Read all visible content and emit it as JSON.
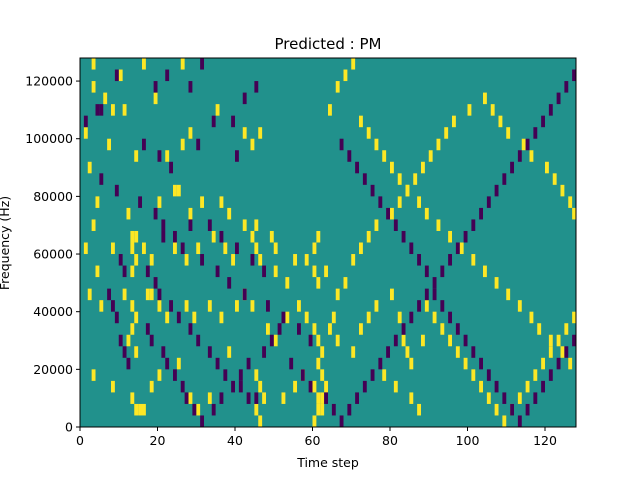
{
  "chart_data": {
    "type": "heatmap",
    "title": "Predicted : PM",
    "xlabel": "Time step",
    "ylabel": "Frequency (Hz)",
    "xlim": [
      0,
      128
    ],
    "ylim": [
      0,
      128000
    ],
    "x_ticks": [
      0,
      20,
      40,
      60,
      80,
      100,
      120
    ],
    "y_ticks": [
      0,
      20000,
      40000,
      60000,
      80000,
      100000,
      120000
    ],
    "x_tick_labels": [
      "0",
      "20",
      "40",
      "60",
      "80",
      "100",
      "120"
    ],
    "y_tick_labels": [
      "0",
      "20000",
      "40000",
      "60000",
      "80000",
      "100000",
      "120000"
    ],
    "background_value": 0,
    "colors": {
      "low": "#440154",
      "mid": "#21918c",
      "high": "#fde725"
    },
    "cell_height_hz": 4000,
    "cells_high": [
      [
        3,
        126000
      ],
      [
        10,
        122000
      ],
      [
        16,
        126000
      ],
      [
        26,
        126000
      ],
      [
        3,
        118000
      ],
      [
        6,
        114000
      ],
      [
        19,
        114000
      ],
      [
        8,
        110000
      ],
      [
        2,
        90000
      ],
      [
        7,
        98000
      ],
      [
        26,
        98000
      ],
      [
        35,
        110000
      ],
      [
        1,
        102000
      ],
      [
        11,
        110000
      ],
      [
        14,
        94000
      ],
      [
        22,
        94000
      ],
      [
        28,
        102000
      ],
      [
        42,
        102000
      ],
      [
        46,
        102000
      ],
      [
        44,
        98000
      ],
      [
        4,
        78000
      ],
      [
        12,
        74000
      ],
      [
        24,
        82000
      ],
      [
        25,
        82000
      ],
      [
        20,
        78000
      ],
      [
        28,
        74000
      ],
      [
        31,
        78000
      ],
      [
        36,
        78000
      ],
      [
        38,
        74000
      ],
      [
        42,
        70000
      ],
      [
        3,
        70000
      ],
      [
        1,
        62000
      ],
      [
        4,
        54000
      ],
      [
        8,
        62000
      ],
      [
        13,
        66000
      ],
      [
        14,
        66000
      ],
      [
        13,
        62000
      ],
      [
        14,
        58000
      ],
      [
        13,
        54000
      ],
      [
        16,
        62000
      ],
      [
        18,
        58000
      ],
      [
        24,
        62000
      ],
      [
        27,
        58000
      ],
      [
        30,
        62000
      ],
      [
        34,
        66000
      ],
      [
        37,
        62000
      ],
      [
        39,
        58000
      ],
      [
        45,
        62000
      ],
      [
        46,
        58000
      ],
      [
        49,
        66000
      ],
      [
        50,
        62000
      ],
      [
        44,
        66000
      ],
      [
        45,
        70000
      ],
      [
        50,
        54000
      ],
      [
        53,
        50000
      ],
      [
        55,
        58000
      ],
      [
        58,
        58000
      ],
      [
        60,
        62000
      ],
      [
        61,
        66000
      ],
      [
        60,
        54000
      ],
      [
        61,
        50000
      ],
      [
        63,
        54000
      ],
      [
        2,
        46000
      ],
      [
        5,
        42000
      ],
      [
        11,
        46000
      ],
      [
        13,
        42000
      ],
      [
        14,
        38000
      ],
      [
        13,
        34000
      ],
      [
        12,
        30000
      ],
      [
        14,
        26000
      ],
      [
        17,
        46000
      ],
      [
        18,
        46000
      ],
      [
        20,
        42000
      ],
      [
        22,
        38000
      ],
      [
        27,
        42000
      ],
      [
        29,
        38000
      ],
      [
        33,
        42000
      ],
      [
        36,
        38000
      ],
      [
        40,
        42000
      ],
      [
        42,
        46000
      ],
      [
        44,
        42000
      ],
      [
        48,
        34000
      ],
      [
        50,
        30000
      ],
      [
        53,
        38000
      ],
      [
        56,
        42000
      ],
      [
        58,
        38000
      ],
      [
        60,
        34000
      ],
      [
        61,
        30000
      ],
      [
        62,
        26000
      ],
      [
        61,
        22000
      ],
      [
        62,
        18000
      ],
      [
        60,
        14000
      ],
      [
        61,
        10000
      ],
      [
        62,
        6000
      ],
      [
        60,
        2000
      ],
      [
        61,
        6000
      ],
      [
        62,
        10000
      ],
      [
        63,
        14000
      ],
      [
        64,
        34000
      ],
      [
        65,
        38000
      ],
      [
        3,
        18000
      ],
      [
        8,
        14000
      ],
      [
        13,
        10000
      ],
      [
        14,
        6000
      ],
      [
        15,
        6000
      ],
      [
        16,
        6000
      ],
      [
        18,
        14000
      ],
      [
        20,
        18000
      ],
      [
        25,
        22000
      ],
      [
        28,
        10000
      ],
      [
        30,
        6000
      ],
      [
        33,
        10000
      ],
      [
        38,
        26000
      ],
      [
        45,
        18000
      ],
      [
        46,
        14000
      ],
      [
        47,
        10000
      ],
      [
        45,
        6000
      ],
      [
        46,
        2000
      ],
      [
        52,
        10000
      ],
      [
        55,
        14000
      ],
      [
        57,
        18000
      ],
      [
        66,
        30000
      ],
      [
        70,
        26000
      ],
      [
        72,
        34000
      ],
      [
        74,
        38000
      ],
      [
        76,
        42000
      ],
      [
        80,
        46000
      ],
      [
        82,
        38000
      ],
      [
        83,
        30000
      ],
      [
        84,
        26000
      ],
      [
        85,
        22000
      ],
      [
        88,
        30000
      ],
      [
        78,
        18000
      ],
      [
        81,
        14000
      ],
      [
        85,
        10000
      ],
      [
        87,
        6000
      ],
      [
        66,
        46000
      ],
      [
        68,
        50000
      ],
      [
        70,
        58000
      ],
      [
        72,
        62000
      ],
      [
        74,
        66000
      ],
      [
        76,
        70000
      ],
      [
        80,
        74000
      ],
      [
        82,
        78000
      ],
      [
        84,
        82000
      ],
      [
        86,
        86000
      ],
      [
        88,
        90000
      ],
      [
        90,
        94000
      ],
      [
        92,
        98000
      ],
      [
        94,
        102000
      ],
      [
        96,
        106000
      ],
      [
        100,
        110000
      ],
      [
        104,
        114000
      ],
      [
        106,
        110000
      ],
      [
        108,
        106000
      ],
      [
        110,
        102000
      ],
      [
        114,
        98000
      ],
      [
        116,
        94000
      ],
      [
        120,
        90000
      ],
      [
        122,
        86000
      ],
      [
        124,
        82000
      ],
      [
        126,
        78000
      ],
      [
        127,
        74000
      ],
      [
        64,
        110000
      ],
      [
        66,
        118000
      ],
      [
        68,
        122000
      ],
      [
        70,
        126000
      ],
      [
        72,
        106000
      ],
      [
        74,
        102000
      ],
      [
        76,
        98000
      ],
      [
        78,
        94000
      ],
      [
        80,
        90000
      ],
      [
        82,
        86000
      ],
      [
        84,
        82000
      ],
      [
        87,
        78000
      ],
      [
        89,
        74000
      ],
      [
        92,
        70000
      ],
      [
        95,
        66000
      ],
      [
        98,
        62000
      ],
      [
        101,
        58000
      ],
      [
        104,
        54000
      ],
      [
        107,
        50000
      ],
      [
        110,
        46000
      ],
      [
        113,
        42000
      ],
      [
        116,
        38000
      ],
      [
        118,
        34000
      ],
      [
        121,
        30000
      ],
      [
        124,
        26000
      ],
      [
        126,
        22000
      ],
      [
        89,
        42000
      ],
      [
        91,
        38000
      ],
      [
        93,
        34000
      ],
      [
        95,
        30000
      ],
      [
        97,
        26000
      ],
      [
        99,
        22000
      ],
      [
        101,
        18000
      ],
      [
        103,
        14000
      ],
      [
        105,
        10000
      ],
      [
        107,
        6000
      ],
      [
        109,
        2000
      ],
      [
        111,
        6000
      ],
      [
        113,
        10000
      ],
      [
        115,
        14000
      ],
      [
        117,
        18000
      ],
      [
        119,
        22000
      ],
      [
        121,
        26000
      ],
      [
        123,
        30000
      ],
      [
        125,
        34000
      ],
      [
        127,
        38000
      ]
    ],
    "cells_low": [
      [
        1,
        106000
      ],
      [
        4,
        110000
      ],
      [
        5,
        110000
      ],
      [
        9,
        122000
      ],
      [
        19,
        118000
      ],
      [
        22,
        122000
      ],
      [
        28,
        118000
      ],
      [
        31,
        126000
      ],
      [
        39,
        106000
      ],
      [
        42,
        114000
      ],
      [
        45,
        118000
      ],
      [
        16,
        98000
      ],
      [
        20,
        94000
      ],
      [
        23,
        90000
      ],
      [
        30,
        98000
      ],
      [
        34,
        106000
      ],
      [
        40,
        94000
      ],
      [
        5,
        86000
      ],
      [
        9,
        82000
      ],
      [
        15,
        78000
      ],
      [
        19,
        74000
      ],
      [
        21,
        70000
      ],
      [
        24,
        66000
      ],
      [
        28,
        70000
      ],
      [
        33,
        70000
      ],
      [
        36,
        66000
      ],
      [
        40,
        62000
      ],
      [
        44,
        58000
      ],
      [
        47,
        54000
      ],
      [
        10,
        58000
      ],
      [
        11,
        54000
      ],
      [
        17,
        54000
      ],
      [
        19,
        50000
      ],
      [
        20,
        46000
      ],
      [
        23,
        42000
      ],
      [
        25,
        38000
      ],
      [
        28,
        34000
      ],
      [
        30,
        30000
      ],
      [
        33,
        26000
      ],
      [
        35,
        22000
      ],
      [
        37,
        18000
      ],
      [
        41,
        14000
      ],
      [
        43,
        10000
      ],
      [
        45,
        10000
      ],
      [
        21,
        66000
      ],
      [
        26,
        62000
      ],
      [
        31,
        58000
      ],
      [
        35,
        54000
      ],
      [
        38,
        50000
      ],
      [
        42,
        46000
      ],
      [
        48,
        42000
      ],
      [
        52,
        38000
      ],
      [
        56,
        34000
      ],
      [
        59,
        30000
      ],
      [
        7,
        46000
      ],
      [
        8,
        42000
      ],
      [
        9,
        38000
      ],
      [
        10,
        30000
      ],
      [
        11,
        26000
      ],
      [
        12,
        22000
      ],
      [
        17,
        34000
      ],
      [
        18,
        30000
      ],
      [
        21,
        26000
      ],
      [
        22,
        22000
      ],
      [
        24,
        18000
      ],
      [
        26,
        14000
      ],
      [
        27,
        10000
      ],
      [
        29,
        6000
      ],
      [
        31,
        2000
      ],
      [
        34,
        6000
      ],
      [
        36,
        10000
      ],
      [
        39,
        14000
      ],
      [
        41,
        18000
      ],
      [
        43,
        22000
      ],
      [
        47,
        26000
      ],
      [
        49,
        30000
      ],
      [
        51,
        34000
      ],
      [
        54,
        22000
      ],
      [
        57,
        18000
      ],
      [
        59,
        14000
      ],
      [
        63,
        10000
      ],
      [
        65,
        6000
      ],
      [
        67,
        2000
      ],
      [
        69,
        6000
      ],
      [
        71,
        10000
      ],
      [
        73,
        14000
      ],
      [
        75,
        18000
      ],
      [
        77,
        22000
      ],
      [
        79,
        26000
      ],
      [
        81,
        30000
      ],
      [
        83,
        34000
      ],
      [
        85,
        38000
      ],
      [
        87,
        42000
      ],
      [
        89,
        46000
      ],
      [
        91,
        50000
      ],
      [
        93,
        54000
      ],
      [
        95,
        58000
      ],
      [
        97,
        62000
      ],
      [
        99,
        66000
      ],
      [
        101,
        70000
      ],
      [
        103,
        74000
      ],
      [
        105,
        78000
      ],
      [
        107,
        82000
      ],
      [
        109,
        86000
      ],
      [
        111,
        90000
      ],
      [
        113,
        94000
      ],
      [
        115,
        98000
      ],
      [
        117,
        102000
      ],
      [
        119,
        106000
      ],
      [
        121,
        110000
      ],
      [
        123,
        114000
      ],
      [
        125,
        118000
      ],
      [
        127,
        122000
      ],
      [
        67,
        98000
      ],
      [
        69,
        94000
      ],
      [
        71,
        90000
      ],
      [
        73,
        86000
      ],
      [
        75,
        82000
      ],
      [
        77,
        78000
      ],
      [
        79,
        74000
      ],
      [
        81,
        70000
      ],
      [
        83,
        66000
      ],
      [
        85,
        62000
      ],
      [
        87,
        58000
      ],
      [
        89,
        54000
      ],
      [
        91,
        46000
      ],
      [
        93,
        42000
      ],
      [
        95,
        38000
      ],
      [
        97,
        34000
      ],
      [
        99,
        30000
      ],
      [
        101,
        26000
      ],
      [
        103,
        22000
      ],
      [
        105,
        18000
      ],
      [
        107,
        14000
      ],
      [
        109,
        10000
      ],
      [
        111,
        6000
      ],
      [
        113,
        2000
      ],
      [
        115,
        6000
      ],
      [
        117,
        10000
      ],
      [
        119,
        14000
      ],
      [
        121,
        18000
      ],
      [
        123,
        22000
      ],
      [
        125,
        26000
      ],
      [
        127,
        30000
      ]
    ]
  }
}
